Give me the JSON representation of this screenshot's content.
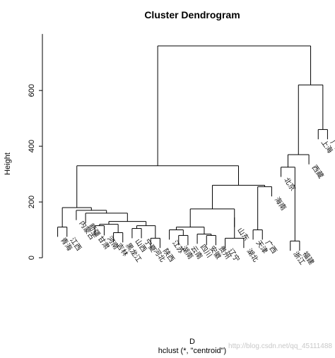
{
  "chart_data": {
    "type": "dendrogram",
    "title": "Cluster Dendrogram",
    "ylabel": "Height",
    "xlabel": "D",
    "sublabel": "hclust (*, \"centroid\")",
    "ylim": [
      0,
      760
    ],
    "yticks": [
      0,
      200,
      400,
      600
    ],
    "leaves": [
      "青海",
      "江西",
      "内蒙古",
      "新疆",
      "甘肃",
      "河南",
      "吉林",
      "黑龙江",
      "山西",
      "宁夏",
      "河北",
      "陕西",
      "江苏",
      "湖南",
      "云南",
      "四川",
      "安徽",
      "贵州",
      "辽宁",
      "山东",
      "湖北",
      "天津",
      "广西",
      "海南",
      "北京",
      "浙江",
      "福建",
      "西藏",
      "上海",
      "广东"
    ],
    "merges": [
      {
        "id": "n1",
        "left": "浙江",
        "right": "福建",
        "height": 60
      },
      {
        "id": "n2",
        "left": "河北",
        "right": "陕西",
        "height": 70
      },
      {
        "id": "n3",
        "left": "湖北",
        "right": "辽宁",
        "height": 70
      },
      {
        "id": "n4",
        "left": "湖南",
        "right": "云南",
        "height": 80
      },
      {
        "id": "n5",
        "left": "安徽",
        "right": "贵州",
        "height": 80
      },
      {
        "id": "n6",
        "left": "四川",
        "right": "n5",
        "height": 85
      },
      {
        "id": "n7",
        "left": "吉林",
        "right": "黑龙江",
        "height": 90
      },
      {
        "id": "n8",
        "left": "天津",
        "right": "广西",
        "height": 100
      },
      {
        "id": "n9",
        "left": "江苏",
        "right": "n4",
        "height": 100
      },
      {
        "id": "n10",
        "left": "山西",
        "right": "宁夏",
        "height": 105
      },
      {
        "id": "n11",
        "left": "青海",
        "right": "江西",
        "height": 110
      },
      {
        "id": "n12",
        "left": "n9",
        "right": "n6",
        "height": 110
      },
      {
        "id": "n13",
        "left": "n10",
        "right": "n2",
        "height": 115
      },
      {
        "id": "n14",
        "left": "甘肃",
        "right": "河南",
        "height": 115
      },
      {
        "id": "n15",
        "left": "n14",
        "right": "n7",
        "height": 120
      },
      {
        "id": "n16",
        "left": "n15",
        "right": "n13",
        "height": 130
      },
      {
        "id": "n17",
        "left": "新疆",
        "right": "n16",
        "height": 160
      },
      {
        "id": "n18",
        "left": "内蒙古",
        "right": "n17",
        "height": 170
      },
      {
        "id": "n19",
        "left": "山东",
        "right": "n3",
        "height": 145
      },
      {
        "id": "n20",
        "left": "n12",
        "right": "n19",
        "height": 175
      },
      {
        "id": "n21",
        "left": "n11",
        "right": "n18",
        "height": 180
      },
      {
        "id": "n22",
        "left": "n8",
        "right": "海南",
        "height": 255
      },
      {
        "id": "n23",
        "left": "n20",
        "right": "n22",
        "height": 260
      },
      {
        "id": "n24",
        "left": "n21",
        "right": "n23",
        "height": 330
      },
      {
        "id": "n25",
        "left": "北京",
        "right": "n1",
        "height": 325
      },
      {
        "id": "n26",
        "left": "n25",
        "right": "西藏",
        "height": 370
      },
      {
        "id": "n27",
        "left": "上海",
        "right": "广东",
        "height": 460
      },
      {
        "id": "n28",
        "left": "n26",
        "right": "n27",
        "height": 620
      },
      {
        "id": "n29",
        "left": "n24",
        "right": "n28",
        "height": 760
      }
    ]
  },
  "watermark": "http://blog.csdn.net/qq_45111488"
}
